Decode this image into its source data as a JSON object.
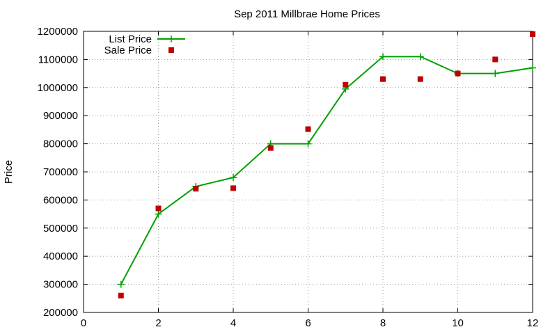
{
  "chart_data": {
    "type": "line",
    "title": "Sep 2011 Millbrae Home Prices",
    "xlabel": "",
    "ylabel": "Price",
    "xlim": [
      0,
      12
    ],
    "ylim": [
      200000,
      1200000
    ],
    "xticks": [
      0,
      2,
      4,
      6,
      8,
      10,
      12
    ],
    "yticks": [
      200000,
      300000,
      400000,
      500000,
      600000,
      700000,
      800000,
      900000,
      1000000,
      1100000,
      1200000
    ],
    "grid": true,
    "legend_position": "top-left",
    "series": [
      {
        "name": "List Price",
        "style": "line-with-plus-markers",
        "color": "#00a000",
        "x": [
          1,
          2,
          3,
          4,
          5,
          6,
          7,
          8,
          9,
          10,
          11,
          12
        ],
        "y": [
          300000,
          550000,
          648000,
          680000,
          800000,
          800000,
          995000,
          1110000,
          1110000,
          1050000,
          1050000,
          1070000
        ]
      },
      {
        "name": "Sale Price",
        "style": "square-markers",
        "color": "#c00000",
        "x": [
          1,
          2,
          3,
          4,
          5,
          6,
          7,
          8,
          9,
          10,
          11,
          12
        ],
        "y": [
          260000,
          570000,
          640000,
          642000,
          785000,
          852000,
          1010000,
          1030000,
          1030000,
          1050000,
          1100000,
          1190000
        ]
      }
    ]
  }
}
